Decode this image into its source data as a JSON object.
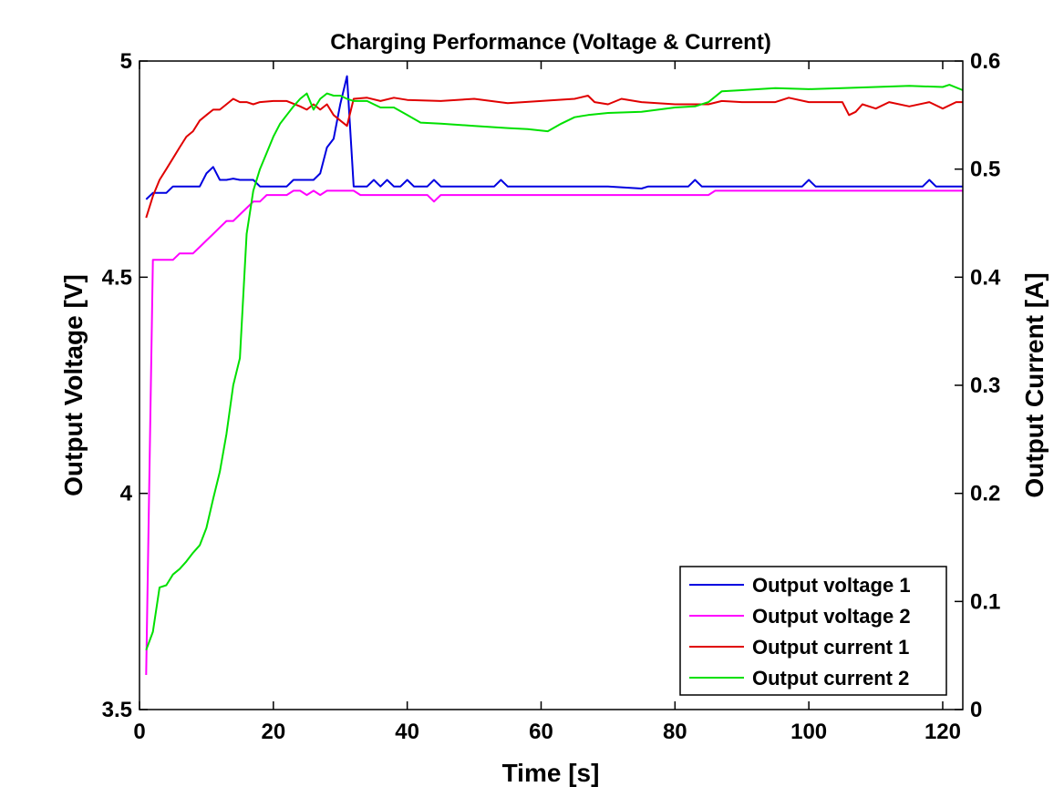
{
  "chart_data": {
    "type": "line",
    "title": "Charging Performance (Voltage & Current)",
    "xlabel": "Time [s]",
    "ylabel_left": "Output Voltage [V]",
    "ylabel_right": "Output Current [A]",
    "xlim": [
      0,
      123
    ],
    "ylim_left": [
      3.5,
      5
    ],
    "ylim_right": [
      0,
      0.6
    ],
    "xticks": [
      "0",
      "20",
      "40",
      "60",
      "80",
      "100",
      "120"
    ],
    "yticks_left": [
      "3.5",
      "4",
      "4.5",
      "5"
    ],
    "yticks_right": [
      "0",
      "0.1",
      "0.2",
      "0.3",
      "0.4",
      "0.5",
      "0.6"
    ],
    "grid": false,
    "legend_position": "bottom-right",
    "series": [
      {
        "name": "Output voltage 1",
        "axis": "left",
        "color": "#0000e0",
        "points": [
          [
            1,
            4.68
          ],
          [
            2,
            4.695
          ],
          [
            3,
            4.695
          ],
          [
            4,
            4.695
          ],
          [
            5,
            4.71
          ],
          [
            6,
            4.71
          ],
          [
            7,
            4.71
          ],
          [
            8,
            4.71
          ],
          [
            9,
            4.71
          ],
          [
            10,
            4.74
          ],
          [
            11,
            4.755
          ],
          [
            12,
            4.725
          ],
          [
            13,
            4.725
          ],
          [
            14,
            4.728
          ],
          [
            15,
            4.725
          ],
          [
            16,
            4.725
          ],
          [
            17,
            4.725
          ],
          [
            18,
            4.71
          ],
          [
            19,
            4.71
          ],
          [
            20,
            4.71
          ],
          [
            21,
            4.71
          ],
          [
            22,
            4.71
          ],
          [
            23,
            4.725
          ],
          [
            24,
            4.725
          ],
          [
            25,
            4.725
          ],
          [
            26,
            4.725
          ],
          [
            27,
            4.74
          ],
          [
            28,
            4.8
          ],
          [
            29,
            4.82
          ],
          [
            30,
            4.9
          ],
          [
            31,
            4.965
          ],
          [
            32,
            4.71
          ],
          [
            33,
            4.71
          ],
          [
            34,
            4.71
          ],
          [
            35,
            4.725
          ],
          [
            36,
            4.71
          ],
          [
            37,
            4.725
          ],
          [
            38,
            4.71
          ],
          [
            39,
            4.71
          ],
          [
            40,
            4.725
          ],
          [
            41,
            4.71
          ],
          [
            42,
            4.71
          ],
          [
            43,
            4.71
          ],
          [
            44,
            4.725
          ],
          [
            45,
            4.71
          ],
          [
            46,
            4.71
          ],
          [
            50,
            4.71
          ],
          [
            53,
            4.71
          ],
          [
            54,
            4.725
          ],
          [
            55,
            4.71
          ],
          [
            60,
            4.71
          ],
          [
            70,
            4.71
          ],
          [
            75,
            4.705
          ],
          [
            76,
            4.71
          ],
          [
            80,
            4.71
          ],
          [
            82,
            4.71
          ],
          [
            83,
            4.725
          ],
          [
            84,
            4.71
          ],
          [
            85,
            4.71
          ],
          [
            86,
            4.71
          ],
          [
            90,
            4.71
          ],
          [
            95,
            4.71
          ],
          [
            99,
            4.71
          ],
          [
            100,
            4.725
          ],
          [
            101,
            4.71
          ],
          [
            105,
            4.71
          ],
          [
            110,
            4.71
          ],
          [
            117,
            4.71
          ],
          [
            118,
            4.725
          ],
          [
            119,
            4.71
          ],
          [
            123,
            4.71
          ]
        ]
      },
      {
        "name": "Output voltage 2",
        "axis": "left",
        "color": "#ff00ff",
        "points": [
          [
            1,
            3.58
          ],
          [
            2,
            4.54
          ],
          [
            3,
            4.54
          ],
          [
            4,
            4.54
          ],
          [
            5,
            4.54
          ],
          [
            6,
            4.555
          ],
          [
            7,
            4.555
          ],
          [
            8,
            4.555
          ],
          [
            9,
            4.57
          ],
          [
            10,
            4.585
          ],
          [
            11,
            4.6
          ],
          [
            12,
            4.615
          ],
          [
            13,
            4.63
          ],
          [
            14,
            4.63
          ],
          [
            15,
            4.645
          ],
          [
            16,
            4.66
          ],
          [
            17,
            4.675
          ],
          [
            18,
            4.675
          ],
          [
            19,
            4.69
          ],
          [
            20,
            4.69
          ],
          [
            21,
            4.69
          ],
          [
            22,
            4.69
          ],
          [
            23,
            4.7
          ],
          [
            24,
            4.7
          ],
          [
            25,
            4.69
          ],
          [
            26,
            4.7
          ],
          [
            27,
            4.69
          ],
          [
            28,
            4.7
          ],
          [
            29,
            4.7
          ],
          [
            30,
            4.7
          ],
          [
            31,
            4.7
          ],
          [
            32,
            4.7
          ],
          [
            33,
            4.69
          ],
          [
            34,
            4.69
          ],
          [
            40,
            4.69
          ],
          [
            43,
            4.69
          ],
          [
            44,
            4.675
          ],
          [
            45,
            4.69
          ],
          [
            50,
            4.69
          ],
          [
            60,
            4.69
          ],
          [
            70,
            4.69
          ],
          [
            80,
            4.69
          ],
          [
            85,
            4.69
          ],
          [
            86,
            4.7
          ],
          [
            87,
            4.7
          ],
          [
            90,
            4.7
          ],
          [
            95,
            4.7
          ],
          [
            100,
            4.7
          ],
          [
            110,
            4.7
          ],
          [
            120,
            4.7
          ],
          [
            123,
            4.7
          ]
        ]
      },
      {
        "name": "Output current 1",
        "axis": "right",
        "color": "#e00000",
        "points": [
          [
            1,
            0.455
          ],
          [
            2,
            0.475
          ],
          [
            3,
            0.49
          ],
          [
            4,
            0.5
          ],
          [
            5,
            0.51
          ],
          [
            6,
            0.52
          ],
          [
            7,
            0.53
          ],
          [
            8,
            0.535
          ],
          [
            9,
            0.545
          ],
          [
            10,
            0.55
          ],
          [
            11,
            0.555
          ],
          [
            12,
            0.555
          ],
          [
            13,
            0.56
          ],
          [
            14,
            0.565
          ],
          [
            15,
            0.562
          ],
          [
            16,
            0.562
          ],
          [
            17,
            0.56
          ],
          [
            18,
            0.562
          ],
          [
            20,
            0.563
          ],
          [
            22,
            0.563
          ],
          [
            24,
            0.558
          ],
          [
            25,
            0.555
          ],
          [
            26,
            0.56
          ],
          [
            27,
            0.555
          ],
          [
            28,
            0.56
          ],
          [
            29,
            0.55
          ],
          [
            30,
            0.545
          ],
          [
            31,
            0.54
          ],
          [
            32,
            0.565
          ],
          [
            34,
            0.566
          ],
          [
            36,
            0.563
          ],
          [
            38,
            0.566
          ],
          [
            40,
            0.564
          ],
          [
            45,
            0.563
          ],
          [
            50,
            0.565
          ],
          [
            55,
            0.561
          ],
          [
            60,
            0.563
          ],
          [
            65,
            0.565
          ],
          [
            67,
            0.568
          ],
          [
            68,
            0.562
          ],
          [
            70,
            0.56
          ],
          [
            72,
            0.565
          ],
          [
            75,
            0.562
          ],
          [
            80,
            0.56
          ],
          [
            85,
            0.56
          ],
          [
            87,
            0.563
          ],
          [
            90,
            0.562
          ],
          [
            95,
            0.562
          ],
          [
            97,
            0.566
          ],
          [
            100,
            0.562
          ],
          [
            105,
            0.562
          ],
          [
            106,
            0.55
          ],
          [
            107,
            0.553
          ],
          [
            108,
            0.56
          ],
          [
            110,
            0.556
          ],
          [
            112,
            0.562
          ],
          [
            115,
            0.558
          ],
          [
            118,
            0.562
          ],
          [
            120,
            0.556
          ],
          [
            122,
            0.562
          ],
          [
            123,
            0.562
          ]
        ]
      },
      {
        "name": "Output current 2",
        "axis": "right",
        "color": "#00e000",
        "points": [
          [
            1,
            0.055
          ],
          [
            2,
            0.072
          ],
          [
            3,
            0.113
          ],
          [
            4,
            0.115
          ],
          [
            5,
            0.125
          ],
          [
            6,
            0.13
          ],
          [
            7,
            0.137
          ],
          [
            8,
            0.145
          ],
          [
            9,
            0.152
          ],
          [
            10,
            0.168
          ],
          [
            11,
            0.195
          ],
          [
            12,
            0.22
          ],
          [
            13,
            0.255
          ],
          [
            14,
            0.3
          ],
          [
            15,
            0.325
          ],
          [
            16,
            0.44
          ],
          [
            17,
            0.48
          ],
          [
            18,
            0.5
          ],
          [
            19,
            0.515
          ],
          [
            20,
            0.53
          ],
          [
            21,
            0.542
          ],
          [
            22,
            0.55
          ],
          [
            23,
            0.558
          ],
          [
            24,
            0.565
          ],
          [
            25,
            0.57
          ],
          [
            26,
            0.555
          ],
          [
            27,
            0.565
          ],
          [
            28,
            0.57
          ],
          [
            29,
            0.568
          ],
          [
            30,
            0.568
          ],
          [
            31,
            0.565
          ],
          [
            32,
            0.563
          ],
          [
            34,
            0.563
          ],
          [
            35,
            0.56
          ],
          [
            36,
            0.557
          ],
          [
            38,
            0.557
          ],
          [
            40,
            0.55
          ],
          [
            42,
            0.543
          ],
          [
            45,
            0.542
          ],
          [
            50,
            0.54
          ],
          [
            55,
            0.538
          ],
          [
            58,
            0.537
          ],
          [
            61,
            0.535
          ],
          [
            63,
            0.542
          ],
          [
            65,
            0.548
          ],
          [
            67,
            0.55
          ],
          [
            70,
            0.552
          ],
          [
            75,
            0.553
          ],
          [
            80,
            0.557
          ],
          [
            83,
            0.558
          ],
          [
            85,
            0.562
          ],
          [
            87,
            0.572
          ],
          [
            90,
            0.573
          ],
          [
            95,
            0.575
          ],
          [
            100,
            0.574
          ],
          [
            105,
            0.575
          ],
          [
            110,
            0.576
          ],
          [
            115,
            0.577
          ],
          [
            120,
            0.576
          ],
          [
            121,
            0.578
          ],
          [
            123,
            0.573
          ]
        ]
      }
    ]
  }
}
